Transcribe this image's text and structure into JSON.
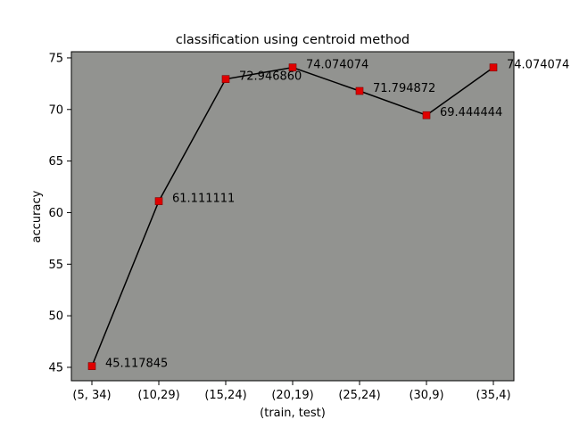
{
  "chart_data": {
    "type": "line",
    "title": "classification using centroid method",
    "xlabel": "(train, test)",
    "ylabel": "accuracy",
    "categories": [
      "(5, 34)",
      "(10,29)",
      "(15,24)",
      "(20,19)",
      "(25,24)",
      "(30,9)",
      "(35,4)"
    ],
    "series": [
      {
        "values": [
          45.117845,
          61.111111,
          72.94686,
          74.074074,
          71.794872,
          69.444444,
          74.074074
        ],
        "labels": [
          "45.117845",
          "61.111111",
          "72.946860",
          "74.074074",
          "71.794872",
          "69.444444",
          "74.074074"
        ],
        "line_color": "#000000",
        "marker": "square",
        "marker_color": "#e00000"
      }
    ],
    "ylim": [
      43.7,
      75.6
    ],
    "yticks": [
      45,
      50,
      55,
      60,
      65,
      70,
      75
    ],
    "grid": false,
    "plot_background": "#929390"
  }
}
